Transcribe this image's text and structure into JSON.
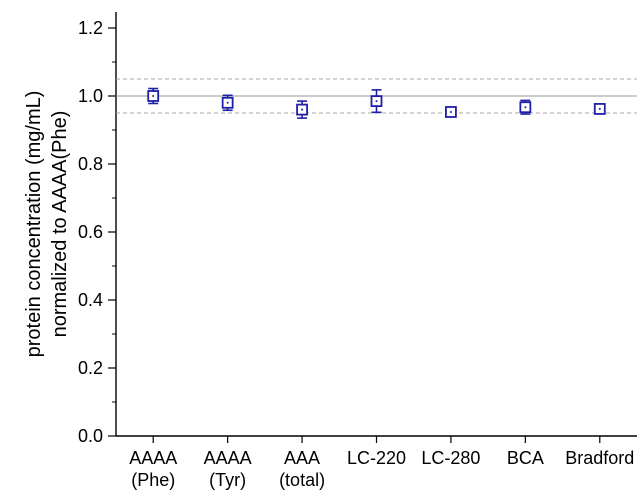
{
  "chart_data": {
    "type": "scatter",
    "title": "",
    "xlabel": "",
    "ylabel_lines": [
      "protein concentration (mg/mL)",
      "normalized to AAAA(Phe)"
    ],
    "categories": [
      [
        "AAAA",
        "(Phe)"
      ],
      [
        "AAAA",
        "(Tyr)"
      ],
      [
        "AAA",
        "(total)"
      ],
      [
        "LC-220"
      ],
      [
        "LC-280"
      ],
      [
        "BCA"
      ],
      [
        "Bradford"
      ]
    ],
    "series": [
      {
        "values": [
          1.0,
          0.98,
          0.96,
          0.985,
          0.953,
          0.967,
          0.962
        ],
        "errors": [
          0.022,
          0.022,
          0.025,
          0.033,
          0.01,
          0.02,
          0.01
        ],
        "marker": "open-square",
        "color": "#1f1fa8"
      }
    ],
    "reference_lines": [
      {
        "value": 1.0,
        "style": "solid",
        "color": "#999999"
      },
      {
        "value": 1.05,
        "style": "dashed",
        "color": "#aaaaaa"
      },
      {
        "value": 0.95,
        "style": "dashed",
        "color": "#aaaaaa"
      }
    ],
    "ylim": [
      0.0,
      1.25
    ],
    "yticks": [
      "0.0",
      "0.2",
      "0.4",
      "0.6",
      "0.8",
      "1.0",
      "1.2"
    ],
    "ytick_values": [
      0.0,
      0.2,
      0.4,
      0.6,
      0.8,
      1.0,
      1.2
    ],
    "grid": false,
    "legend": "none"
  }
}
